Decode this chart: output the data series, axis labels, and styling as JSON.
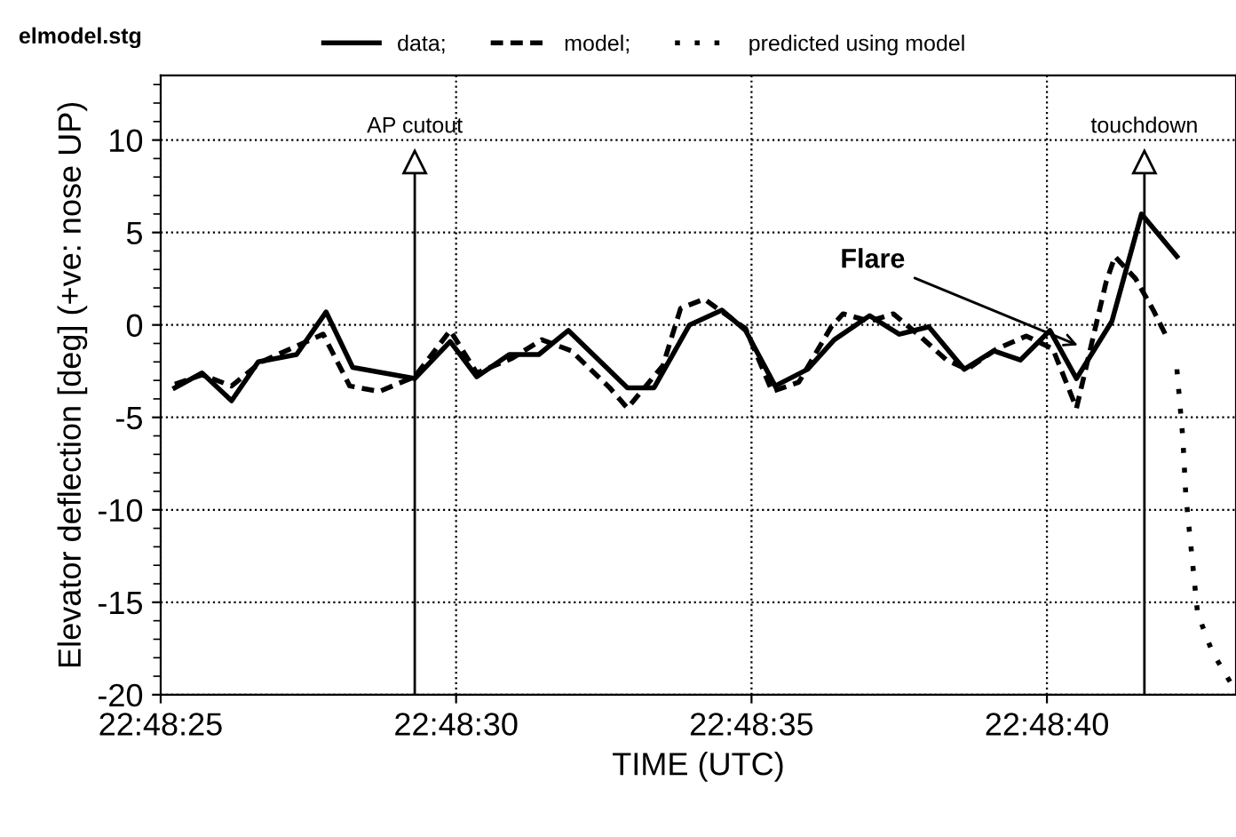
{
  "chart_data": {
    "type": "line",
    "xlabel": "TIME (UTC)",
    "ylabel": "Elevator deflection [deg] (+ve: nose UP)",
    "annotations": [
      "elmodel.stg",
      {
        "text": "Flare",
        "x": 22.8112778,
        "y": -1.2
      }
    ],
    "xlim": [
      22.8069444,
      22.812
    ],
    "ylim": [
      -20,
      13.5
    ],
    "xticks": [
      {
        "value": 22.8069444,
        "label": "22:48:25"
      },
      {
        "value": 22.8083333,
        "label": "22:48:30"
      },
      {
        "value": 22.8097222,
        "label": "22:48:35"
      },
      {
        "value": 22.8111111,
        "label": "22:48:40"
      }
    ],
    "yticks": [
      -20,
      -15,
      -10,
      -5,
      0,
      5,
      10
    ],
    "grid": true,
    "legend": "top",
    "marker": "none",
    "ref_lines": [
      {
        "axis": "x",
        "value": 22.8081389,
        "label": "AP cutout",
        "color": "#000000",
        "line_style": "solid"
      },
      {
        "axis": "x",
        "value": 22.8115694,
        "label": "touchdown",
        "color": "#000000",
        "line_style": "solid"
      }
    ],
    "series": [
      {
        "name": "data;",
        "color": "#000000",
        "line_style": "solid",
        "x": [
          22.8070111,
          22.8071389,
          22.8072778,
          22.8074028,
          22.8075833,
          22.8077222,
          22.8078472,
          22.8081389,
          22.8083056,
          22.8084306,
          22.8085833,
          22.8087222,
          22.8088611,
          22.8091389,
          22.8092639,
          22.8094306,
          22.8095833,
          22.8096944,
          22.8098333,
          22.8099861,
          22.8101111,
          22.8102778,
          22.8104167,
          22.8105556,
          22.8107222,
          22.8108611,
          22.8109861,
          22.811125,
          22.81125,
          22.8114167,
          22.8115556,
          22.8117222
        ],
        "values": [
          -3.4,
          -2.6,
          -4.1,
          -2.0,
          -1.6,
          0.7,
          -2.3,
          -2.9,
          -0.9,
          -2.8,
          -1.6,
          -1.6,
          -0.3,
          -3.4,
          -3.4,
          0.0,
          0.8,
          -0.3,
          -3.3,
          -2.4,
          -0.8,
          0.5,
          -0.5,
          -0.1,
          -2.4,
          -1.4,
          -1.9,
          -0.3,
          -2.9,
          0.2,
          6.0,
          3.7
        ]
      },
      {
        "name": "model;",
        "color": "#000000",
        "line_style": "dashed",
        "x": [
          22.8070111,
          22.8071389,
          22.8072778,
          22.8074167,
          22.8076111,
          22.8077083,
          22.8078333,
          22.8079722,
          22.8081389,
          22.8083056,
          22.8084306,
          22.8085972,
          22.8087361,
          22.808875,
          22.8090556,
          22.8091389,
          22.8093056,
          22.8093889,
          22.8095,
          22.8096944,
          22.8098194,
          22.8099444,
          22.8100972,
          22.8101528,
          22.8102778,
          22.8103889,
          22.8105139,
          22.8106389,
          22.8107361,
          22.810875,
          22.8110139,
          22.8111389,
          22.81125,
          22.8113889,
          22.8114306,
          22.8115278,
          22.8116111,
          22.8116806
        ],
        "values": [
          -3.2,
          -2.7,
          -3.3,
          -2.0,
          -1.0,
          -0.5,
          -3.3,
          -3.6,
          -2.8,
          -0.3,
          -2.6,
          -1.8,
          -0.8,
          -1.4,
          -3.4,
          -4.5,
          -2.2,
          0.9,
          1.4,
          -0.2,
          -3.6,
          -3.1,
          -0.1,
          0.6,
          0.2,
          0.6,
          -0.6,
          -1.9,
          -2.4,
          -1.3,
          -0.6,
          -1.3,
          -4.5,
          2.3,
          3.7,
          2.5,
          0.8,
          -0.8
        ]
      },
      {
        "name": "predicted using model",
        "color": "#000000",
        "line_style": "dotted",
        "x": [
          22.8117222,
          22.81175,
          22.8117639,
          22.8117917,
          22.8118194,
          22.8118889,
          22.8119722
        ],
        "values": [
          -2.4,
          -6.1,
          -9.2,
          -12.4,
          -15.6,
          -17.7,
          -19.3
        ]
      }
    ]
  }
}
